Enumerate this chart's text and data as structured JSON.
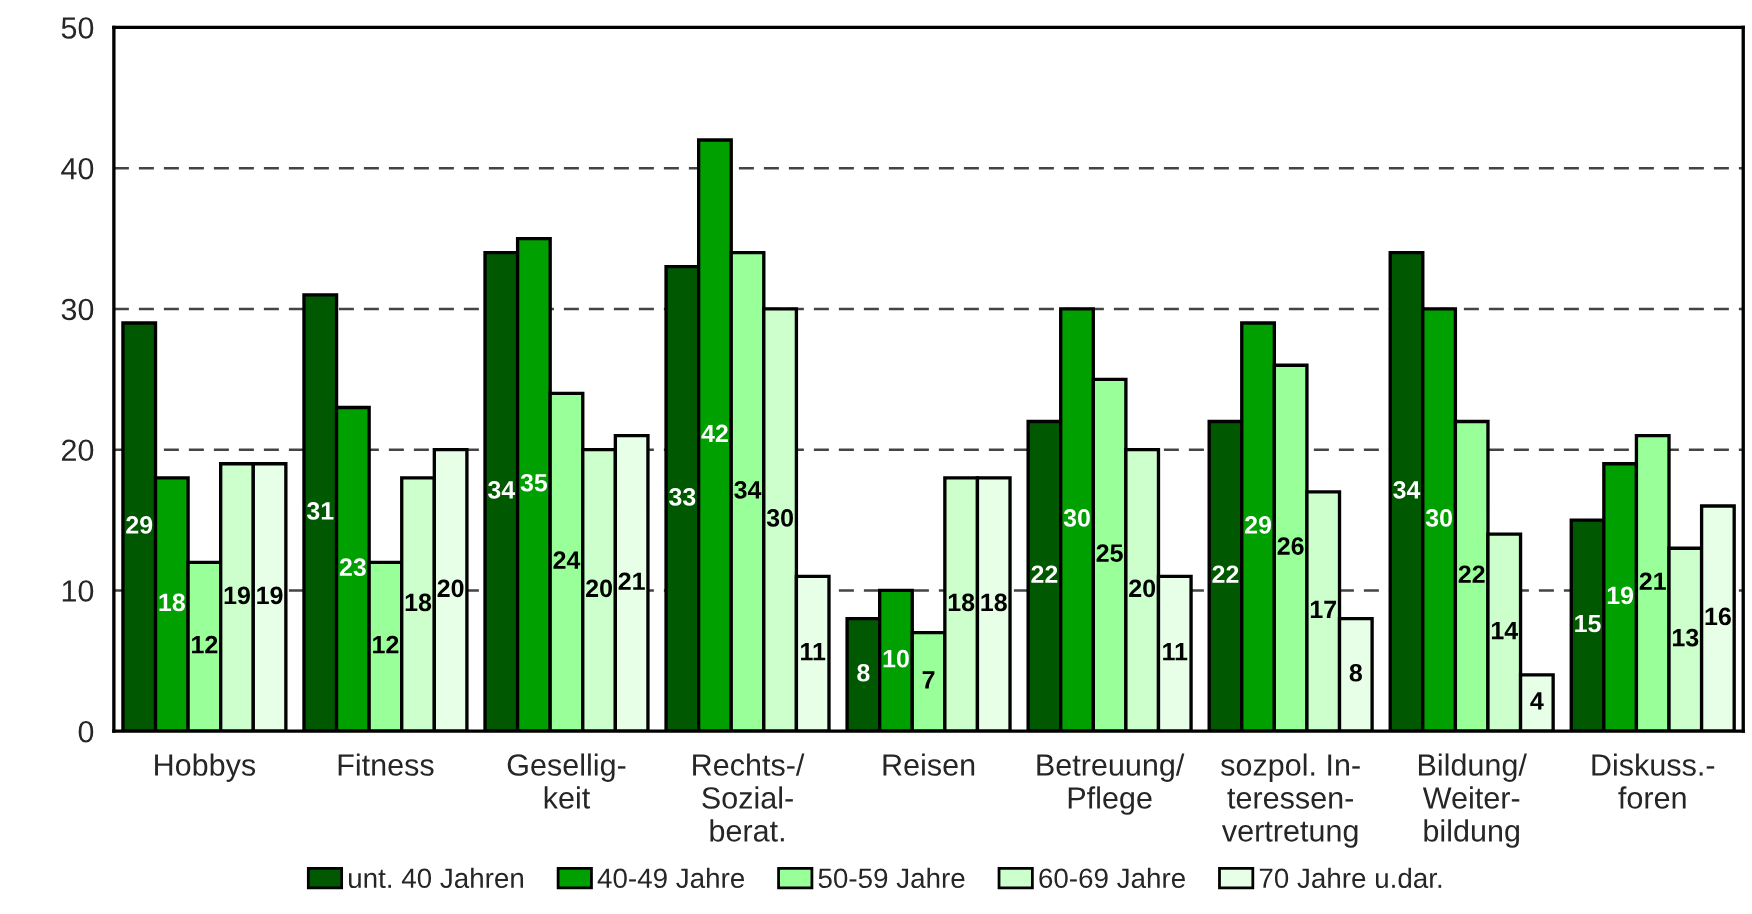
{
  "chart_data": {
    "type": "bar",
    "categories": [
      "Hobbys",
      "Fitness",
      "Gesellig-\nkeit",
      "Rechts-/\nSozial-\nberat.",
      "Reisen",
      "Betreuung/\nPflege",
      "sozpol. In-\nteressen-\nvertretung",
      "Bildung/\nWeiter-\nbildung",
      "Diskuss.-\nforen"
    ],
    "series": [
      {
        "name": "unt. 40 Jahren",
        "color": "#005900",
        "values": [
          29,
          31,
          34,
          33,
          8,
          22,
          22,
          34,
          15
        ]
      },
      {
        "name": "40-49 Jahre",
        "color": "#00a000",
        "values": [
          18,
          23,
          35,
          42,
          10,
          30,
          29,
          30,
          19
        ]
      },
      {
        "name": "50-59 Jahre",
        "color": "#99ff99",
        "values": [
          12,
          12,
          24,
          34,
          7,
          25,
          26,
          22,
          21
        ]
      },
      {
        "name": "60-69 Jahre",
        "color": "#ccffcc",
        "values": [
          19,
          18,
          20,
          30,
          18,
          20,
          17,
          14,
          13
        ]
      },
      {
        "name": "70 Jahre u.dar.",
        "color": "#e6ffe6",
        "values": [
          19,
          20,
          21,
          11,
          18,
          11,
          8,
          4,
          16
        ]
      }
    ],
    "ylim": [
      0,
      50
    ],
    "yticks": [
      0,
      10,
      20,
      30,
      40,
      50
    ],
    "grid": "y",
    "legend": "bottom",
    "data_labels": true
  }
}
